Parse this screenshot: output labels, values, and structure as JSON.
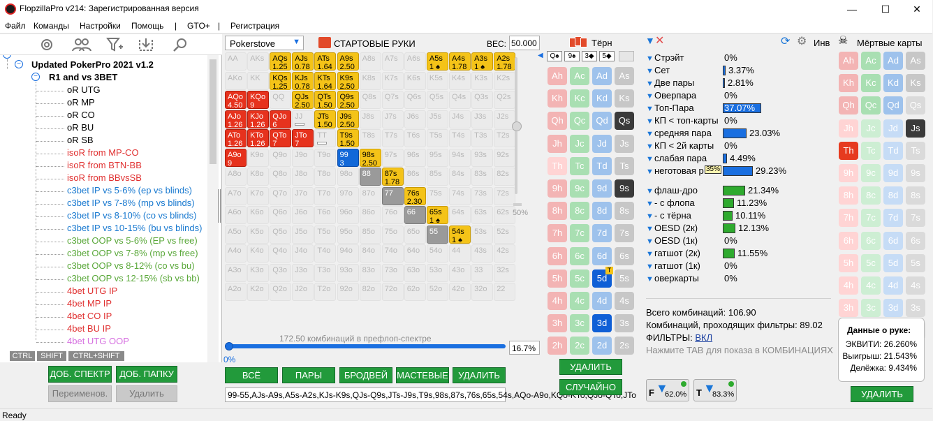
{
  "app": {
    "title": "FlopzillaPro v214: Зарегистрированная версия",
    "status": "Ready"
  },
  "menu": [
    "Файл",
    "Команды",
    "Настройки",
    "Помощь",
    "|",
    "GTO+",
    "|",
    "Регистрация"
  ],
  "tree": {
    "root": "Updated PokerPro 2021 v1.2",
    "group": "R1 and vs 3BET",
    "items": [
      {
        "t": "oR UTG",
        "c": "#000"
      },
      {
        "t": "oR MP",
        "c": "#000"
      },
      {
        "t": "oR CO",
        "c": "#000"
      },
      {
        "t": "oR BU",
        "c": "#000"
      },
      {
        "t": "oR SB",
        "c": "#000"
      },
      {
        "t": "isoR from MP-CO",
        "c": "#e03030"
      },
      {
        "t": "isoR from BTN-BB",
        "c": "#e03030"
      },
      {
        "t": "isoR from BBvsSB",
        "c": "#e03030"
      },
      {
        "t": "c3bet IP vs 5-6% (ep vs blinds)",
        "c": "#1a7ad0"
      },
      {
        "t": "c3bet IP vs 7-8% (mp vs blinds)",
        "c": "#1a7ad0"
      },
      {
        "t": "c3bet IP vs 8-10% (co vs blinds)",
        "c": "#1a7ad0"
      },
      {
        "t": "c3bet IP vs 10-15% (bu vs blinds)",
        "c": "#1a7ad0"
      },
      {
        "t": "c3bet OOP vs 5-6% (EP vs free)",
        "c": "#5aa83a"
      },
      {
        "t": "c3bet OOP vs 7-8% (mp vs free)",
        "c": "#5aa83a"
      },
      {
        "t": "c3bet OOP vs 8-12% (co vs bu)",
        "c": "#5aa83a"
      },
      {
        "t": "c3bet OOP vs 12-15% (sb vs bb)",
        "c": "#5aa83a"
      },
      {
        "t": "4bet UTG IP",
        "c": "#e03030"
      },
      {
        "t": "4bet MP IP",
        "c": "#e03030"
      },
      {
        "t": "4bet CO IP",
        "c": "#e03030"
      },
      {
        "t": "4bet BU IP",
        "c": "#e03030"
      },
      {
        "t": "4bet UTG OOP",
        "c": "#d670e0"
      }
    ],
    "mods": [
      "CTRL",
      "SHIFT",
      "CTRL+SHIFT"
    ],
    "buttons": {
      "add_spectrum": "ДОБ. СПЕКТР",
      "add_folder": "ДОБ. ПАПКУ",
      "rename": "Переименов.",
      "delete": "Удалить"
    }
  },
  "range": {
    "source": "Pokerstove",
    "title": "СТАРТОВЫЕ РУКИ",
    "weight_label": "ВЕС:",
    "weight_value": "50.000",
    "slider_pct": "50%",
    "combos_text": "172.50 комбинаций в префлоп-спектре",
    "pct_left": "0%",
    "pct_box": "16.7%",
    "buttons": [
      "ВСЁ",
      "ПАРЫ",
      "БРОДВЕЙ",
      "МАСТЕВЫЕ",
      "УДАЛИТЬ"
    ],
    "text": "99-55,AJs-A9s,A5s-A2s,KJs-K9s,QJs-Q9s,JTs-J9s,T9s,98s,87s,76s,65s,54s,AQo-A9o,KQo-KTo,QJo-QTo,JTo"
  },
  "grid": [
    [
      "AA",
      "AKs",
      "AQs|1.25",
      "AJs|0.78",
      "ATs|1.64",
      "A9s|2.50",
      "A8s",
      "A7s",
      "A6s",
      "A5s|1 ♠",
      "A4s|1.78",
      "A3s|1 ♠",
      "A2s|1.78"
    ],
    [
      "AKo",
      "KK",
      "KQs|1.25",
      "KJs|0.78",
      "KTs|1.64",
      "K9s|2.50",
      "K8s",
      "K7s",
      "K6s",
      "K5s",
      "K4s",
      "K3s",
      "K2s"
    ],
    [
      "AQo|4.50",
      "KQo|9",
      "QQ",
      "QJs|2.50",
      "QTs|1.50",
      "Q9s|2.50",
      "Q8s",
      "Q7s",
      "Q6s",
      "Q5s",
      "Q4s",
      "Q3s",
      "Q2s"
    ],
    [
      "AJo|1.26",
      "KJo|1.26",
      "QJo|6",
      "JJ",
      "JTs|1.50",
      "J9s|2.50",
      "J8s",
      "J7s",
      "J6s",
      "J5s",
      "J4s",
      "J3s",
      "J2s"
    ],
    [
      "ATo|1.26",
      "KTo|1.26",
      "QTo|7",
      "JTo|7",
      "TT",
      "T9s|1.50",
      "T8s",
      "T7s",
      "T6s",
      "T5s",
      "T4s",
      "T3s",
      "T2s"
    ],
    [
      "A9o|9",
      "K9o",
      "Q9o",
      "J9o",
      "T9o",
      "99|3",
      "98s|2.50",
      "97s",
      "96s",
      "95s",
      "94s",
      "93s",
      "92s"
    ],
    [
      "A8o",
      "K8o",
      "Q8o",
      "J8o",
      "T8o",
      "98o",
      "88",
      "87s|1.78",
      "86s",
      "85s",
      "84s",
      "83s",
      "82s"
    ],
    [
      "A7o",
      "K7o",
      "Q7o",
      "J7o",
      "T7o",
      "97o",
      "87o",
      "77",
      "76s|2.30",
      "75s",
      "74s",
      "73s",
      "72s"
    ],
    [
      "A6o",
      "K6o",
      "Q6o",
      "J6o",
      "T6o",
      "96o",
      "86o",
      "76o",
      "66",
      "65s|1 ♠",
      "64s",
      "63s",
      "62s"
    ],
    [
      "A5o",
      "K5o",
      "Q5o",
      "J5o",
      "T5o",
      "95o",
      "85o",
      "75o",
      "65o",
      "55",
      "54s|1 ♠",
      "53s",
      "52s"
    ],
    [
      "A4o",
      "K4o",
      "Q4o",
      "J4o",
      "T4o",
      "94o",
      "84o",
      "74o",
      "64o",
      "54o",
      "44",
      "43s",
      "42s"
    ],
    [
      "A3o",
      "K3o",
      "Q3o",
      "J3o",
      "T3o",
      "93o",
      "83o",
      "73o",
      "63o",
      "53o",
      "43o",
      "33",
      "32s"
    ],
    [
      "A2o",
      "K2o",
      "Q2o",
      "J2o",
      "T2o",
      "92o",
      "82o",
      "72o",
      "62o",
      "52o",
      "42o",
      "32o",
      "22"
    ]
  ],
  "board": {
    "title": "Тёрн",
    "cards": [
      "Q♠",
      "9♠",
      "3◆",
      "5◆"
    ],
    "delete": "УДАЛИТЬ",
    "random": "СЛУЧАЙНО",
    "ranks": [
      "A",
      "K",
      "Q",
      "J",
      "T",
      "9",
      "8",
      "7",
      "6",
      "5",
      "4",
      "3",
      "2"
    ]
  },
  "filters": {
    "rows": [
      {
        "label": "Стрэйт",
        "val": "0%",
        "w": 0,
        "bar": ""
      },
      {
        "label": "Сет",
        "val": "3.37%",
        "w": 4,
        "bar": "b"
      },
      {
        "label": "Две пары",
        "val": "2.81%",
        "w": 3,
        "bar": "b"
      },
      {
        "label": "Оверпара",
        "val": "0%",
        "w": 0,
        "bar": ""
      },
      {
        "label": "Топ-Пара",
        "val": "37.07%",
        "w": 55,
        "bar": "b"
      },
      {
        "label": "КП < топ-карты",
        "val": "0%",
        "w": 0,
        "bar": ""
      },
      {
        "label": "средняя пара",
        "val": "23.03%",
        "w": 34,
        "bar": "b"
      },
      {
        "label": "КП < 2й карты",
        "val": "0%",
        "w": 0,
        "bar": ""
      },
      {
        "label": "слабая пара",
        "val": "4.49%",
        "w": 6,
        "bar": "b"
      },
      {
        "label": "неготовая р",
        "val": "29.23%",
        "w": 43,
        "bar": "b"
      },
      {
        "label": "флаш-дро",
        "val": "21.34%",
        "w": 32,
        "bar": "g"
      },
      {
        "label": "- с флопа",
        "val": "11.23%",
        "w": 16,
        "bar": "g"
      },
      {
        "label": "- с тёрна",
        "val": "10.11%",
        "w": 14,
        "bar": "g"
      },
      {
        "label": "OESD (2к)",
        "val": "12.13%",
        "w": 18,
        "bar": "g"
      },
      {
        "label": "OESD (1к)",
        "val": "0%",
        "w": 0,
        "bar": ""
      },
      {
        "label": "гатшот (2к)",
        "val": "11.55%",
        "w": 17,
        "bar": "g"
      },
      {
        "label": "гатшот (1к)",
        "val": "0%",
        "w": 0,
        "bar": ""
      },
      {
        "label": "оверкарты",
        "val": "0%",
        "w": 0,
        "bar": ""
      }
    ],
    "pct_badge": "35%",
    "total": "Всего комбинаций: 106.90",
    "passing": "Комбинаций, проходящих фильтры: 89.02",
    "filters_label": "ФИЛЬТРЫ: ",
    "filters_state": "ВКЛ",
    "hint": "Нажмите TAB для показа в КОМБИНАЦИЯХ",
    "btn1": "62.0%",
    "btn2": "83.3%",
    "inv": "Инв"
  },
  "dead": {
    "title": "Мёртвые карты",
    "delete": "УДАЛИТЬ",
    "hand_title": "Данные о руке:",
    "equity": "ЭКВИТИ: 26.260%",
    "wins": "Выигрыш: 21.543%",
    "split": "Делёжка: 9.434%"
  }
}
